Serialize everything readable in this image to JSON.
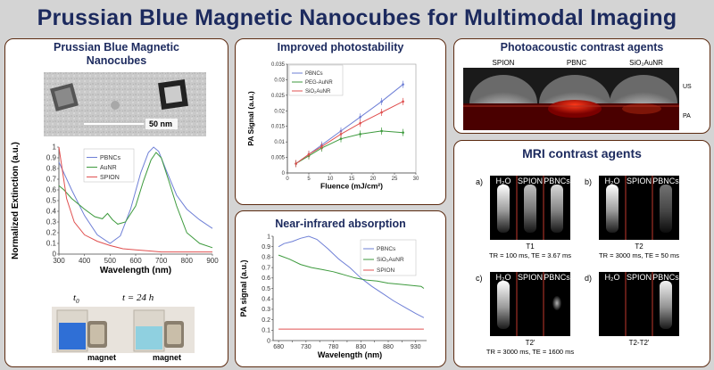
{
  "title": "Prussian Blue Magnetic Nanocubes for Multimodal Imaging",
  "panel1": {
    "title_line1": "Prussian Blue Magnetic",
    "title_line2": "Nanocubes",
    "scale_bar": "50 nm",
    "t0_label": "t",
    "t0_sub": "0",
    "t24_label": "t = 24 h",
    "magnet_label": "magnet"
  },
  "panel2": {
    "title": "Improved photostability"
  },
  "panel3": {
    "title": "Near-infrared absorption"
  },
  "panel4": {
    "title": "Photoacoustic contrast agents",
    "labels": [
      "SPION",
      "PBNC",
      "SiO₂AuNR"
    ],
    "us": "US",
    "pa": "PA"
  },
  "panel5": {
    "title": "MRI contrast agents",
    "panel_letters": [
      "a)",
      "b)",
      "c)",
      "d)"
    ],
    "col_labels": [
      "H₂O",
      "SPION",
      "PBNCs"
    ],
    "captions": [
      {
        "name": "T1",
        "params": "TR = 100 ms, TE = 3.67 ms"
      },
      {
        "name": "T2",
        "params": "TR = 3000 ms, TE = 50 ms"
      },
      {
        "name": "T2'",
        "params": "TR = 3000 ms, TE = 1600 ms"
      },
      {
        "name": "T2-T2'",
        "params": ""
      }
    ]
  },
  "chart_data": [
    {
      "type": "line",
      "xlabel": "Wavelength (nm)",
      "ylabel": "Normalized Extinction (a.u.)",
      "xlim": [
        300,
        900
      ],
      "ylim": [
        0,
        1
      ],
      "x_ticks": [
        300,
        400,
        500,
        600,
        700,
        800,
        900
      ],
      "y_ticks": [
        0,
        0.1,
        0.2,
        0.3,
        0.4,
        0.5,
        0.6,
        0.7,
        0.8,
        0.9,
        1
      ],
      "legend": "top-left",
      "series": [
        {
          "name": "PBNCs",
          "color": "#6e7fd6",
          "x": [
            300,
            350,
            400,
            450,
            500,
            540,
            580,
            620,
            650,
            670,
            690,
            720,
            760,
            800,
            850,
            900
          ],
          "y": [
            0.86,
            0.6,
            0.36,
            0.18,
            0.1,
            0.17,
            0.42,
            0.76,
            0.95,
            1.0,
            0.96,
            0.78,
            0.55,
            0.42,
            0.32,
            0.24
          ]
        },
        {
          "name": "AuNR",
          "color": "#3d9a3d",
          "x": [
            300,
            320,
            350,
            400,
            440,
            470,
            490,
            510,
            530,
            560,
            600,
            630,
            660,
            680,
            700,
            730,
            760,
            800,
            850,
            900
          ],
          "y": [
            0.64,
            0.6,
            0.52,
            0.42,
            0.35,
            0.33,
            0.38,
            0.32,
            0.28,
            0.3,
            0.45,
            0.68,
            0.88,
            0.95,
            0.9,
            0.68,
            0.45,
            0.2,
            0.1,
            0.06
          ]
        },
        {
          "name": "SPION",
          "color": "#e05050",
          "x": [
            300,
            330,
            360,
            400,
            450,
            500,
            550,
            600,
            650,
            700,
            800,
            900
          ],
          "y": [
            1.0,
            0.52,
            0.3,
            0.18,
            0.12,
            0.08,
            0.05,
            0.04,
            0.03,
            0.02,
            0.02,
            0.02
          ]
        }
      ]
    },
    {
      "type": "line",
      "xlabel": "Fluence (mJ/cm²)",
      "ylabel": "PA Signal (a.u.)",
      "xlim": [
        0,
        30
      ],
      "ylim": [
        0,
        0.035
      ],
      "x_ticks": [
        0,
        5,
        10,
        15,
        20,
        25,
        30
      ],
      "y_ticks": [
        0,
        0.005,
        0.01,
        0.015,
        0.02,
        0.025,
        0.03,
        0.035
      ],
      "legend": "top-left",
      "series": [
        {
          "name": "PBNCs",
          "color": "#6e7fd6",
          "x": [
            2,
            5,
            8,
            12.5,
            17,
            22,
            27
          ],
          "y": [
            0.003,
            0.006,
            0.009,
            0.0135,
            0.018,
            0.023,
            0.0285
          ]
        },
        {
          "name": "PEG-AuNR",
          "color": "#3d9a3d",
          "x": [
            2,
            5,
            8,
            12.5,
            17,
            22,
            27
          ],
          "y": [
            0.003,
            0.0055,
            0.008,
            0.011,
            0.0125,
            0.0135,
            0.013
          ]
        },
        {
          "name": "SiO₂AuNR",
          "color": "#e05050",
          "x": [
            2,
            5,
            8,
            12.5,
            17,
            22,
            27
          ],
          "y": [
            0.003,
            0.006,
            0.0085,
            0.0125,
            0.016,
            0.0195,
            0.023
          ]
        }
      ]
    },
    {
      "type": "line",
      "xlabel": "Wavelength (nm)",
      "ylabel": "PA signal (a.u.)",
      "xlim": [
        670,
        950
      ],
      "ylim": [
        0,
        1
      ],
      "x_ticks": [
        680,
        705,
        730,
        755,
        780,
        805,
        830,
        855,
        880,
        905,
        930
      ],
      "x_tick_labels": [
        680,
        "",
        730,
        "",
        780,
        "",
        830,
        "",
        880,
        "",
        930
      ],
      "y_ticks": [
        0,
        0.1,
        0.2,
        0.3,
        0.4,
        0.5,
        0.6,
        0.7,
        0.8,
        0.9,
        1
      ],
      "legend": "top-right",
      "series": [
        {
          "name": "PBNCs",
          "color": "#6e7fd6",
          "x": [
            680,
            690,
            705,
            720,
            735,
            750,
            770,
            790,
            810,
            830,
            850,
            870,
            890,
            910,
            930,
            945
          ],
          "y": [
            0.9,
            0.93,
            0.95,
            0.98,
            1.0,
            0.97,
            0.88,
            0.78,
            0.7,
            0.6,
            0.52,
            0.45,
            0.38,
            0.32,
            0.26,
            0.22
          ]
        },
        {
          "name": "SiO₂AuNR",
          "color": "#3d9a3d",
          "x": [
            680,
            700,
            720,
            740,
            760,
            780,
            800,
            820,
            840,
            860,
            880,
            900,
            920,
            940,
            945
          ],
          "y": [
            0.82,
            0.78,
            0.73,
            0.7,
            0.68,
            0.66,
            0.63,
            0.6,
            0.58,
            0.57,
            0.55,
            0.54,
            0.53,
            0.52,
            0.5
          ]
        },
        {
          "name": "SPION",
          "color": "#e05050",
          "x": [
            680,
            720,
            760,
            800,
            840,
            880,
            920,
            945
          ],
          "y": [
            0.11,
            0.11,
            0.11,
            0.11,
            0.11,
            0.11,
            0.11,
            0.11
          ]
        }
      ]
    }
  ]
}
